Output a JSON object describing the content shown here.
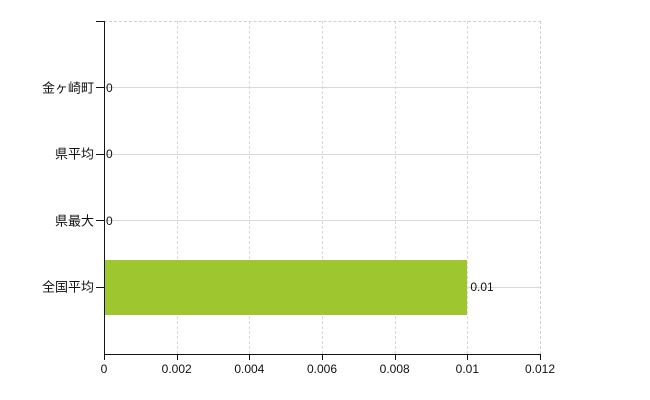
{
  "chart_data": {
    "type": "bar",
    "orientation": "horizontal",
    "categories": [
      "金ヶ崎町",
      "県平均",
      "県最大",
      "全国平均"
    ],
    "values": [
      0,
      0,
      0,
      0.01
    ],
    "value_labels": [
      "0",
      "0",
      "0",
      "0.01"
    ],
    "xlim": [
      0,
      0.012
    ],
    "x_ticks": [
      0,
      0.002,
      0.004,
      0.006,
      0.008,
      0.01,
      0.012
    ],
    "x_tick_labels": [
      "0",
      "0.002",
      "0.004",
      "0.006",
      "0.008",
      "0.01",
      "0.012"
    ],
    "grid": "on",
    "legend": "none",
    "colors": {
      "bar": "#9ec72f",
      "horizontal_gridline": "#d5ddd0",
      "vertical_gridline": "#d9d9d9",
      "axis": "#141414",
      "text": "#111111",
      "background": "#ffffff",
      "border_dashed": "#cfcfcf"
    }
  }
}
